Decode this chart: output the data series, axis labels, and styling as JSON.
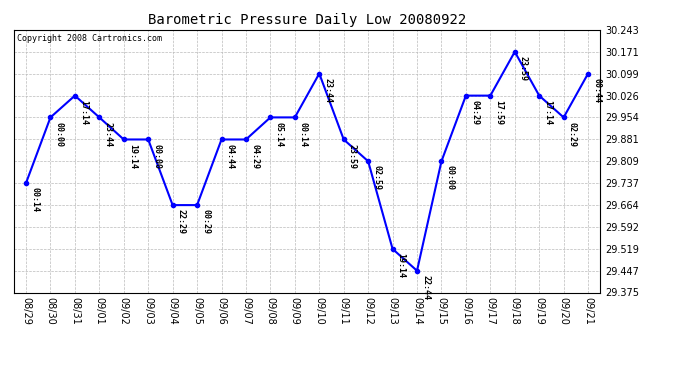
{
  "title": "Barometric Pressure Daily Low 20080922",
  "copyright": "Copyright 2008 Cartronics.com",
  "line_color": "blue",
  "marker_color": "blue",
  "background_color": "#ffffff",
  "grid_color": "#bbbbbb",
  "dates": [
    "08/29",
    "08/30",
    "08/31",
    "09/01",
    "09/02",
    "09/03",
    "09/04",
    "09/05",
    "09/06",
    "09/07",
    "09/08",
    "09/09",
    "09/10",
    "09/11",
    "09/12",
    "09/13",
    "09/14",
    "09/15",
    "09/16",
    "09/17",
    "09/18",
    "09/19",
    "09/20",
    "09/21"
  ],
  "values": [
    29.737,
    29.954,
    30.026,
    29.954,
    29.881,
    29.881,
    29.664,
    29.664,
    29.881,
    29.881,
    29.954,
    29.954,
    30.099,
    29.881,
    29.809,
    29.519,
    29.447,
    29.809,
    30.026,
    30.026,
    30.171,
    30.026,
    29.954,
    30.099
  ],
  "labels": [
    "00:14",
    "00:00",
    "17:14",
    "23:44",
    "19:14",
    "00:00",
    "22:29",
    "00:29",
    "04:44",
    "04:29",
    "05:14",
    "00:14",
    "23:44",
    "23:59",
    "02:59",
    "19:14",
    "22:44",
    "00:00",
    "04:29",
    "17:59",
    "23:59",
    "17:14",
    "02:29",
    "00:44"
  ],
  "ylim": [
    29.375,
    30.243
  ],
  "yticks": [
    29.375,
    29.447,
    29.519,
    29.592,
    29.664,
    29.737,
    29.809,
    29.881,
    29.954,
    30.026,
    30.099,
    30.171,
    30.243
  ],
  "figsize": [
    6.9,
    3.75
  ],
  "dpi": 100
}
